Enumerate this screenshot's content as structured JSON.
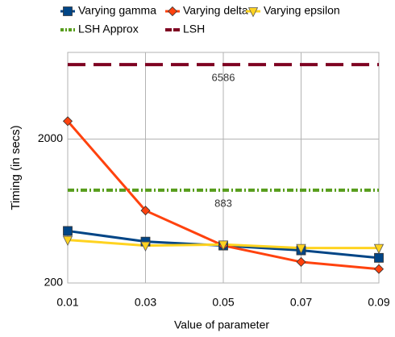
{
  "chart_data": {
    "type": "line",
    "x_label": "Value of parameter",
    "y_label": "Timing (in secs)",
    "x": [
      0.01,
      0.03,
      0.05,
      0.07,
      0.09
    ],
    "xlim": [
      0.01,
      0.09
    ],
    "xticks": [
      0.01,
      0.03,
      0.05,
      0.07,
      0.09
    ],
    "ylim": [
      200,
      8000
    ],
    "yticks": [
      200,
      2000
    ],
    "log_y": true,
    "grid": true,
    "series": [
      {
        "name": "Varying gamma",
        "color": "#004586",
        "marker": "square",
        "values": [
          460,
          388,
          364,
          337,
          299
        ]
      },
      {
        "name": "Varying delta",
        "color": "#ff420e",
        "marker": "diamond",
        "values": [
          2663,
          637,
          364,
          280,
          250
        ]
      },
      {
        "name": "Varying epsilon",
        "color": "#ffd320",
        "marker": "triangle-down",
        "values": [
          398,
          364,
          370,
          350,
          350
        ]
      }
    ],
    "reference_lines": [
      {
        "name": "LSH Approx",
        "color": "#579d1c",
        "style": "dash-dot",
        "value": 883
      },
      {
        "name": "LSH",
        "color": "#7e0021",
        "style": "dashed",
        "value": 6586
      }
    ]
  }
}
